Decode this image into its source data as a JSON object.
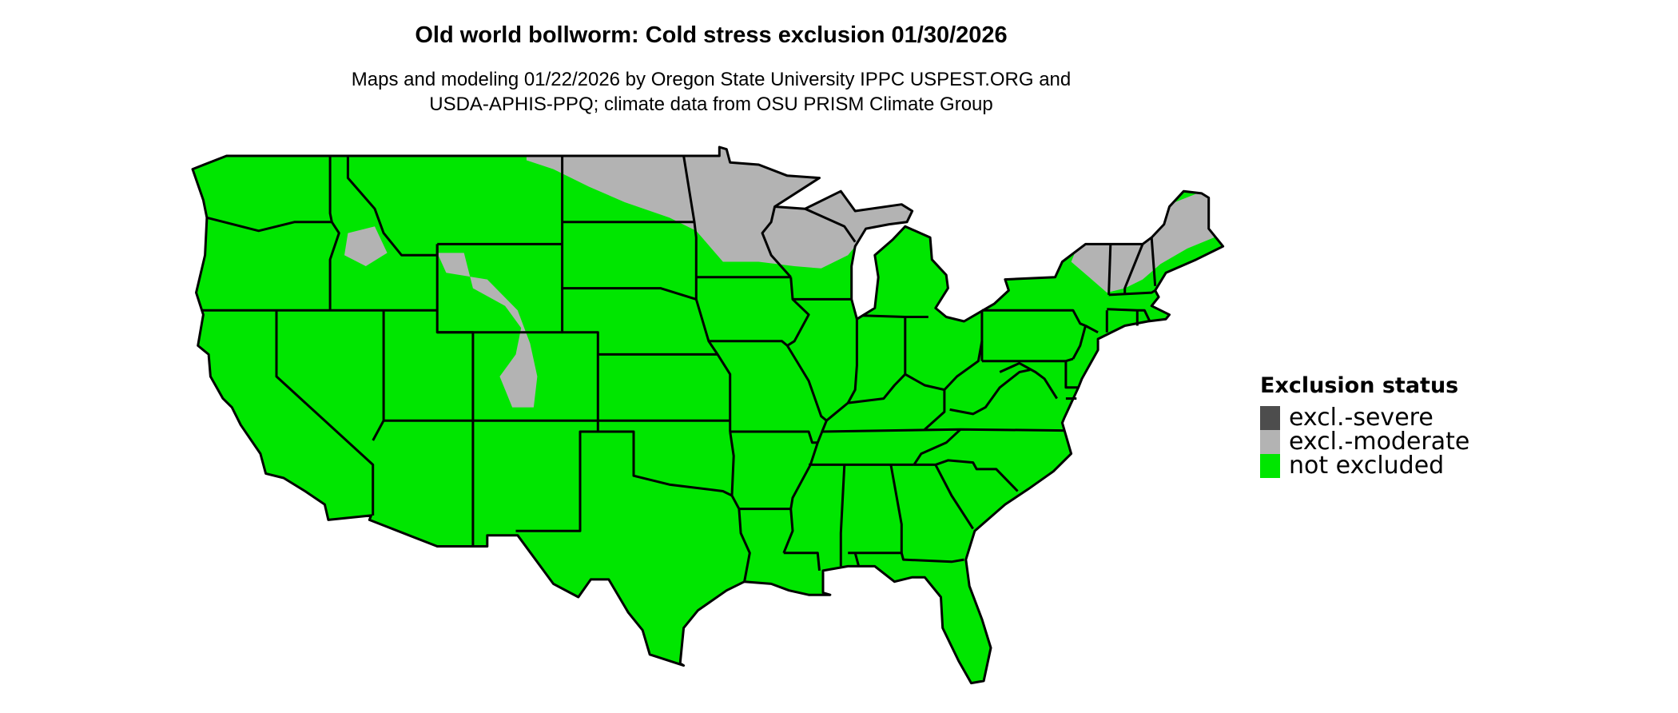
{
  "title": "Old world bollworm: Cold stress exclusion 01/30/2026",
  "subtitle_lines": [
    "Maps and modeling 01/22/2026 by Oregon State University IPPC USPEST.ORG and",
    "USDA-APHIS-PPQ; climate data from OSU PRISM Climate Group"
  ],
  "legend": {
    "title": "Exclusion status",
    "items": [
      {
        "label": "excl.-severe",
        "color": "#4d4d4d"
      },
      {
        "label": "excl.-moderate",
        "color": "#b3b3b3"
      },
      {
        "label": "not excluded",
        "color": "#00e600"
      }
    ]
  },
  "map": {
    "region": "Contiguous United States",
    "base_color": "#00e600",
    "moderate_color": "#b3b3b3",
    "border_color": "#000000"
  }
}
